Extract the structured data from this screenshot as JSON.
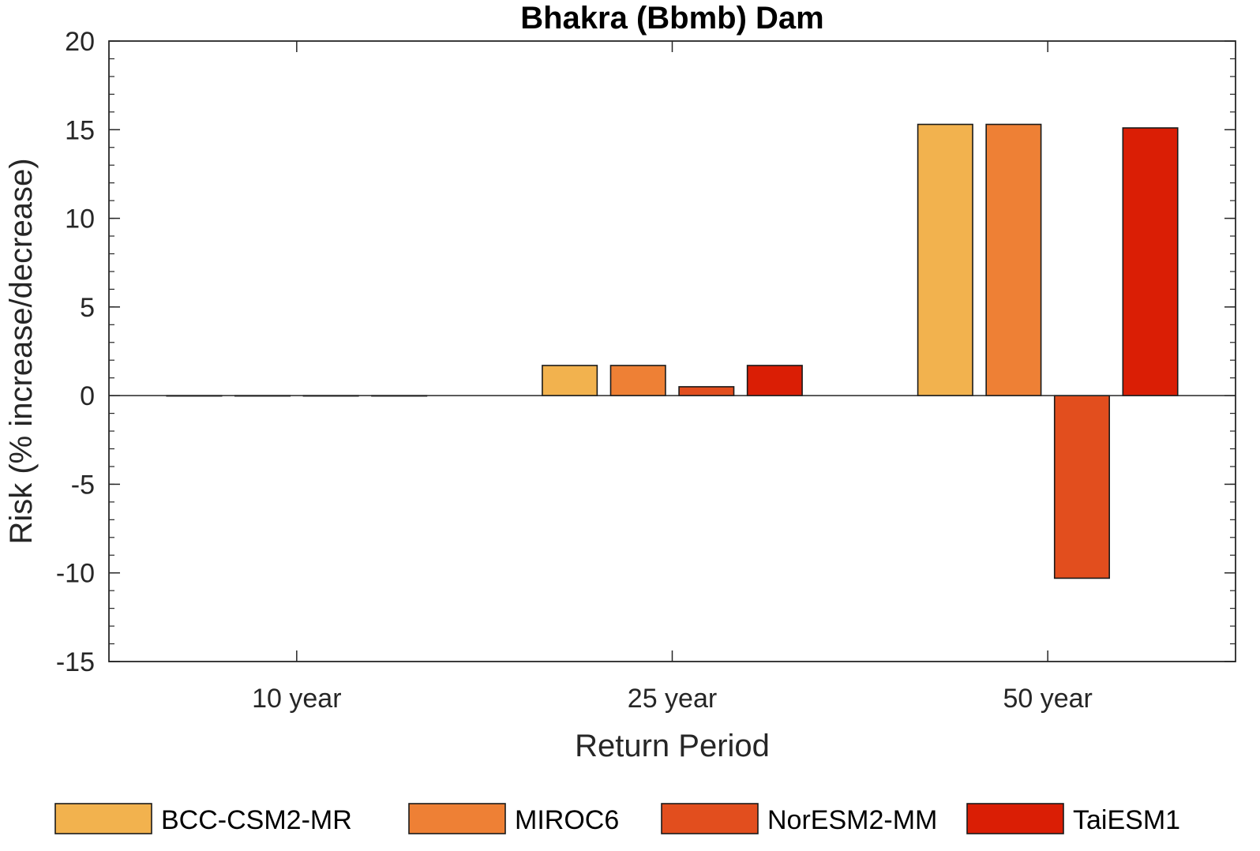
{
  "chart_data": {
    "type": "bar",
    "title": "Bhakra (Bbmb) Dam",
    "xlabel": "Return Period",
    "ylabel": "Risk (% increase/decrease)",
    "ylim": [
      -15,
      20
    ],
    "yticks": [
      "20",
      "15",
      "10",
      "5",
      "0",
      "-5",
      "-10",
      "-15"
    ],
    "categories": [
      "10 year",
      "25 year",
      "50 year"
    ],
    "series": [
      {
        "name": "BCC-CSM2-MR",
        "color": "#F2B24E",
        "values": [
          0,
          1.7,
          15.3
        ]
      },
      {
        "name": "MIROC6",
        "color": "#EE8035",
        "values": [
          0,
          1.7,
          15.3
        ]
      },
      {
        "name": "NorESM2-MM",
        "color": "#E24E1E",
        "values": [
          0,
          0.5,
          -10.3
        ]
      },
      {
        "name": "TaiESM1",
        "color": "#DA1E05",
        "values": [
          0,
          1.7,
          15.1
        ]
      }
    ],
    "grid": false,
    "legend_position": "bottom"
  }
}
